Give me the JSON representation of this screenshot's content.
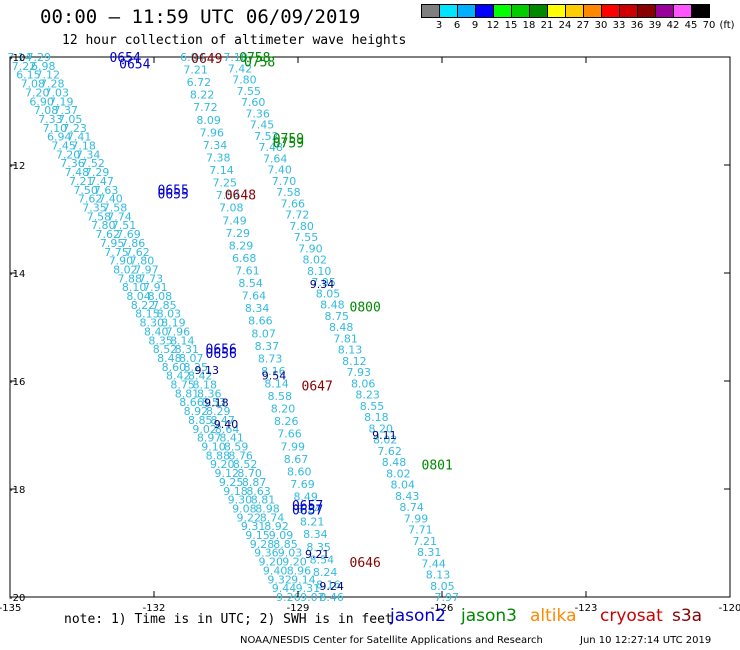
{
  "header": {
    "title": "00:00 – 11:59 UTC 06/09/2019",
    "subtitle": "12 hour collection of altimeter wave heights"
  },
  "legend": {
    "unit": "(ft)",
    "bins": [
      {
        "label": "3",
        "color": "#7f7f7f"
      },
      {
        "label": "6",
        "color": "#00e5ff"
      },
      {
        "label": "9",
        "color": "#00b0ff"
      },
      {
        "label": "12",
        "color": "#0000ff"
      },
      {
        "label": "15",
        "color": "#00ff00"
      },
      {
        "label": "18",
        "color": "#00cc00"
      },
      {
        "label": "21",
        "color": "#008800"
      },
      {
        "label": "24",
        "color": "#ffff00"
      },
      {
        "label": "27",
        "color": "#ffcc00"
      },
      {
        "label": "30",
        "color": "#ff8800"
      },
      {
        "label": "33",
        "color": "#ff0000"
      },
      {
        "label": "36",
        "color": "#cc0000"
      },
      {
        "label": "39",
        "color": "#880000"
      },
      {
        "label": "42",
        "color": "#990099"
      },
      {
        "label": "45",
        "color": "#ff55ff"
      },
      {
        "label": "70",
        "color": "#000000"
      }
    ]
  },
  "map": {
    "lon_ticks": [
      -135,
      -132,
      -129,
      -126,
      -123,
      -120
    ],
    "lat_ticks": [
      -10,
      -12,
      -14,
      -16,
      -18,
      -20
    ],
    "lon_range": [
      -135,
      -120
    ],
    "lat_range": [
      -20,
      -10
    ],
    "tick_color": "#000000",
    "swh_color": "#33bbdd",
    "tracks": [
      {
        "name": "track-west-a",
        "start": [
          -134.8,
          -10.0
        ],
        "end": [
          -129.2,
          -20.0
        ],
        "values": [
          "7.14",
          "7.22",
          "6.15",
          "7.08",
          "7.20",
          "6.90",
          "7.08",
          "7.33",
          "7.10",
          "6.94",
          "7.45",
          "7.20",
          "7.36",
          "7.48",
          "7.21",
          "7.50",
          "7.62",
          "7.35",
          "7.58",
          "7.80",
          "7.62",
          "7.95",
          "7.75",
          "7.90",
          "8.02",
          "7.88",
          "8.10",
          "8.04",
          "8.22",
          "8.15",
          "8.30",
          "8.40",
          "8.35",
          "8.52",
          "8.48",
          "8.60",
          "8.42",
          "8.75",
          "8.81",
          "8.66",
          "8.92",
          "8.85",
          "9.02",
          "8.97",
          "9.10",
          "8.88",
          "9.20",
          "9.12",
          "9.25",
          "9.18",
          "9.30",
          "9.08",
          "9.22",
          "9.31",
          "9.15",
          "9.28",
          "9.36",
          "9.20",
          "9.40",
          "9.32",
          "9.44",
          "9.26"
        ]
      },
      {
        "name": "track-west-b",
        "start": [
          -134.4,
          -10.0
        ],
        "end": [
          -128.7,
          -20.0
        ],
        "values": [
          "7.29",
          "6.98",
          "7.12",
          "7.28",
          "7.03",
          "7.19",
          "7.37",
          "7.05",
          "7.23",
          "7.41",
          "7.18",
          "7.34",
          "7.52",
          "7.29",
          "7.47",
          "7.63",
          "7.40",
          "7.58",
          "7.74",
          "7.51",
          "7.69",
          "7.86",
          "7.62",
          "7.80",
          "7.97",
          "7.73",
          "7.91",
          "8.08",
          "7.85",
          "8.03",
          "8.19",
          "7.96",
          "8.14",
          "8.31",
          "8.07",
          "8.25",
          "8.42",
          "8.18",
          "8.36",
          "8.53",
          "8.29",
          "8.47",
          "8.64",
          "8.41",
          "8.59",
          "8.76",
          "8.52",
          "8.70",
          "8.87",
          "8.63",
          "8.81",
          "8.98",
          "8.74",
          "8.92",
          "9.09",
          "8.85",
          "9.03",
          "9.20",
          "8.96",
          "9.14",
          "9.31",
          "9.07"
        ]
      },
      {
        "name": "track-middle",
        "start": [
          -131.2,
          -10.0
        ],
        "end": [
          -128.3,
          -20.0
        ],
        "values": [
          "6.84",
          "7.21",
          "6.72",
          "8.22",
          "7.72",
          "8.09",
          "7.96",
          "7.34",
          "7.38",
          "7.14",
          "7.25",
          "7.54",
          "7.08",
          "7.49",
          "7.29",
          "8.29",
          "6.68",
          "7.61",
          "8.54",
          "7.64",
          "8.34",
          "8.66",
          "8.07",
          "8.37",
          "8.73",
          "8.16",
          "8.14",
          "8.58",
          "8.20",
          "8.26",
          "7.66",
          "7.99",
          "8.67",
          "8.60",
          "7.69",
          "8.49",
          "8.24",
          "8.21",
          "8.34",
          "8.35",
          "8.54",
          "8.24",
          "8.16",
          "8.46"
        ]
      },
      {
        "name": "track-east",
        "start": [
          -130.3,
          -10.0
        ],
        "end": [
          -125.9,
          -20.0
        ],
        "values": [
          "7.10",
          "7.42",
          "7.80",
          "7.55",
          "7.60",
          "7.36",
          "7.45",
          "7.52",
          "7.48",
          "7.64",
          "7.40",
          "7.70",
          "7.58",
          "7.66",
          "7.72",
          "7.80",
          "7.55",
          "7.90",
          "8.02",
          "8.10",
          "7.95",
          "8.05",
          "8.48",
          "8.75",
          "8.48",
          "7.81",
          "8.13",
          "8.12",
          "7.93",
          "8.06",
          "8.23",
          "8.55",
          "8.18",
          "8.20",
          "8.02",
          "7.62",
          "8.48",
          "8.02",
          "8.04",
          "8.43",
          "8.74",
          "7.99",
          "7.71",
          "7.21",
          "8.31",
          "7.44",
          "8.13",
          "8.05",
          "7.97"
        ]
      }
    ],
    "swh_marks": [
      {
        "value": "9.34",
        "lon": -128.5,
        "lat": -14.2
      },
      {
        "value": "9.13",
        "lon": -130.9,
        "lat": -15.8
      },
      {
        "value": "9.54",
        "lon": -129.5,
        "lat": -15.9
      },
      {
        "value": "9.18",
        "lon": -130.7,
        "lat": -16.4
      },
      {
        "value": "9.40",
        "lon": -130.5,
        "lat": -16.8
      },
      {
        "value": "9.11",
        "lon": -127.2,
        "lat": -17.0
      },
      {
        "value": "9.21",
        "lon": -128.6,
        "lat": -19.2
      },
      {
        "value": "9.24",
        "lon": -128.3,
        "lat": -19.8
      }
    ],
    "time_labels": [
      {
        "text": "0654",
        "lon": -132.6,
        "lat": -10.0,
        "color": "#0000cc"
      },
      {
        "text": "0654",
        "lon": -132.4,
        "lat": -10.12,
        "color": "#0000cc"
      },
      {
        "text": "0649",
        "lon": -130.9,
        "lat": -10.02,
        "color": "#880000"
      },
      {
        "text": "0758",
        "lon": -129.9,
        "lat": -10.0,
        "color": "#008800"
      },
      {
        "text": "0758",
        "lon": -129.8,
        "lat": -10.08,
        "color": "#008800"
      },
      {
        "text": "0759",
        "lon": -129.2,
        "lat": -11.5,
        "color": "#008800"
      },
      {
        "text": "0759",
        "lon": -129.2,
        "lat": -11.58,
        "color": "#008800"
      },
      {
        "text": "0655",
        "lon": -131.6,
        "lat": -12.45,
        "color": "#0000cc"
      },
      {
        "text": "0655",
        "lon": -131.6,
        "lat": -12.53,
        "color": "#0000cc"
      },
      {
        "text": "0648",
        "lon": -130.2,
        "lat": -12.55,
        "color": "#880000"
      },
      {
        "text": "0800",
        "lon": -127.6,
        "lat": -14.62,
        "color": "#008800"
      },
      {
        "text": "0656",
        "lon": -130.6,
        "lat": -15.4,
        "color": "#0000cc"
      },
      {
        "text": "0656",
        "lon": -130.6,
        "lat": -15.48,
        "color": "#0000cc"
      },
      {
        "text": "0647",
        "lon": -128.6,
        "lat": -16.08,
        "color": "#880000"
      },
      {
        "text": "0801",
        "lon": -126.1,
        "lat": -17.55,
        "color": "#008800"
      },
      {
        "text": "0657",
        "lon": -128.8,
        "lat": -18.3,
        "color": "#0000cc"
      },
      {
        "text": "0657",
        "lon": -128.8,
        "lat": -18.38,
        "color": "#0000cc"
      },
      {
        "text": "0646",
        "lon": -127.6,
        "lat": -19.35,
        "color": "#880000"
      }
    ]
  },
  "footer": {
    "note": "note: 1) Time is in UTC; 2) SWH is in feet",
    "satellites": [
      {
        "name": "jason2",
        "color": "#0000cc"
      },
      {
        "name": "jason3",
        "color": "#008800"
      },
      {
        "name": "altika",
        "color": "#ff8800"
      },
      {
        "name": "cryosat",
        "color": "#cc0000"
      },
      {
        "name": "s3a",
        "color": "#880000"
      }
    ],
    "credit": "NOAA/NESDIS Center for Satellite Applications and Research",
    "timestamp": "Jun 10 12:27:14 UTC 2019"
  }
}
